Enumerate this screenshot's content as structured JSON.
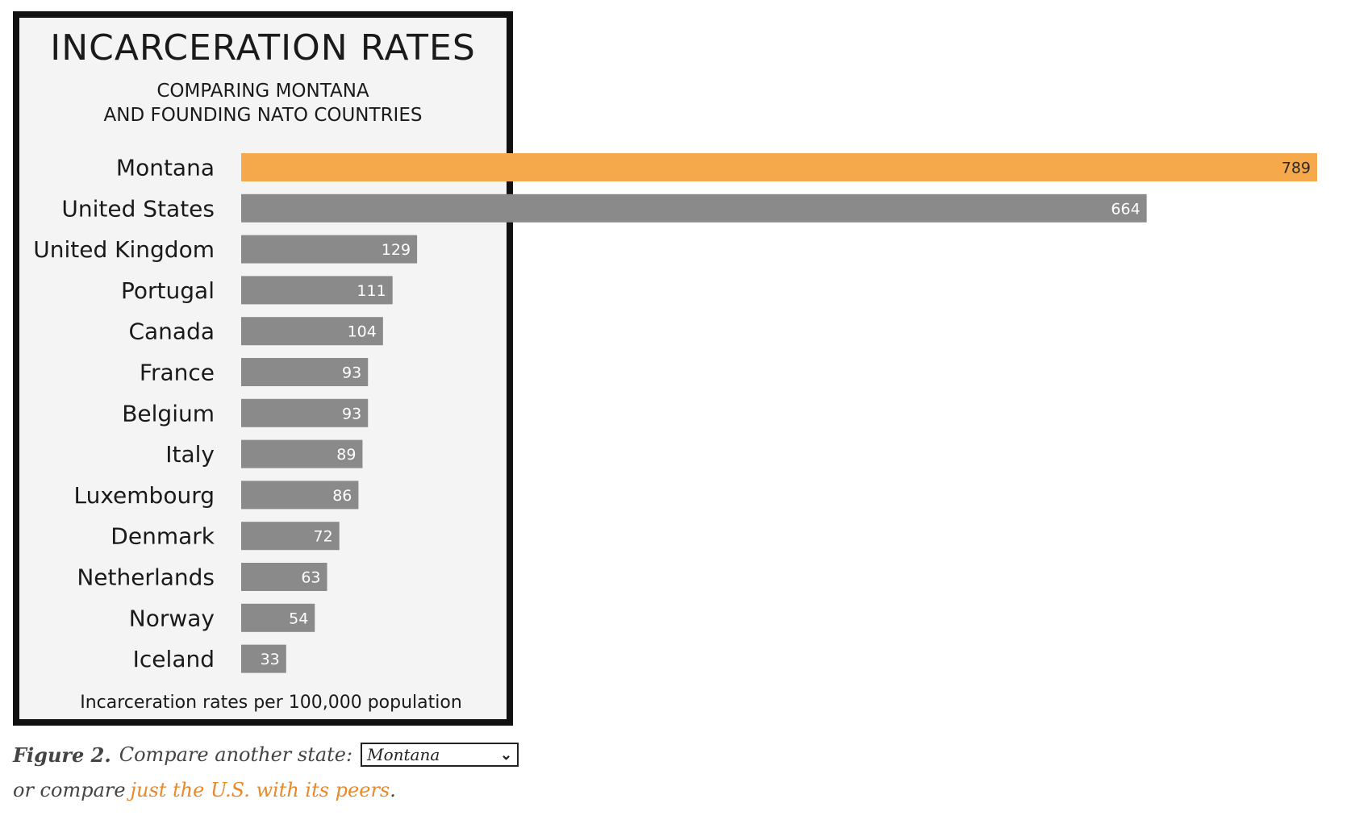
{
  "chart_data": {
    "type": "bar",
    "orientation": "horizontal",
    "title": "INCARCERATION RATES",
    "subtitle_lines": [
      "COMPARING MONTANA",
      "AND FOUNDING NATO COUNTRIES"
    ],
    "xlabel": "Incarceration rates per 100,000 population",
    "ylabel": "",
    "xlim": [
      0,
      789
    ],
    "grid": false,
    "categories": [
      "Montana",
      "United States",
      "United Kingdom",
      "Portugal",
      "Canada",
      "France",
      "Belgium",
      "Italy",
      "Luxembourg",
      "Denmark",
      "Netherlands",
      "Norway",
      "Iceland"
    ],
    "values": [
      789,
      664,
      129,
      111,
      104,
      93,
      93,
      89,
      86,
      72,
      63,
      54,
      33
    ],
    "value_labels": [
      "789",
      "664",
      "129",
      "111",
      "104",
      "93",
      "93",
      "89",
      "86",
      "72",
      "63",
      "54",
      "33"
    ],
    "highlight_color": "#f5a94a",
    "bar_color": "#8a8a8a"
  },
  "caption": {
    "figure_label": "Figure 2.",
    "compare_text": "Compare another state:",
    "select_value": "Montana",
    "or_text": "or compare",
    "link_text": "just the U.S. with its peers",
    "period": "."
  }
}
